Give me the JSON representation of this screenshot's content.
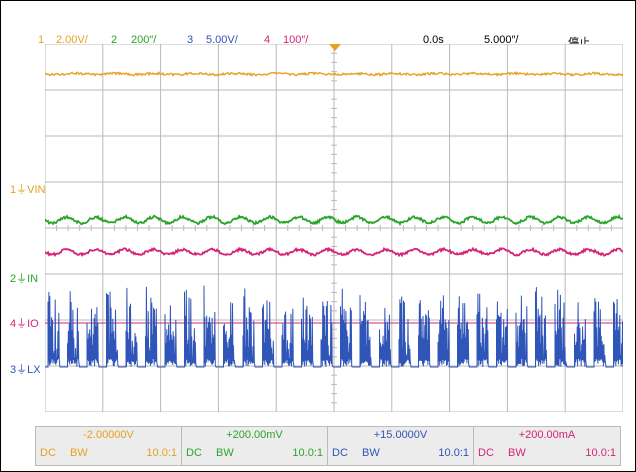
{
  "colors": {
    "ch1": "#e8a020",
    "ch2": "#2aa52a",
    "ch3": "#2f55b8",
    "ch4": "#d4237a",
    "grid": "#b9b9b9",
    "trigger": "#e8a020"
  },
  "header": {
    "channels": [
      {
        "num": "1",
        "scale": "2.00V/"
      },
      {
        "num": "2",
        "scale": "200″/"
      },
      {
        "num": "3",
        "scale": "5.00V/"
      },
      {
        "num": "4",
        "scale": "100″/"
      }
    ],
    "time_offset": "0.0s",
    "timebase": "5.000″/",
    "run_state": "停止"
  },
  "markers": [
    {
      "num": "1",
      "label": "VIN"
    },
    {
      "num": "2",
      "label": "IN"
    },
    {
      "num": "4",
      "label": "IO"
    },
    {
      "num": "3",
      "label": "LX"
    }
  ],
  "status": [
    {
      "offset": "-2.00000V",
      "coupling": "DC",
      "bw": "BW",
      "probe": "10.0:1"
    },
    {
      "offset": "+200.00mV",
      "coupling": "DC",
      "bw": "BW",
      "probe": "10.0:1"
    },
    {
      "offset": "+15.0000V",
      "coupling": "DC",
      "bw": "BW",
      "probe": "10.0:1"
    },
    {
      "offset": "+200.00mA",
      "coupling": "DC",
      "bw": "BW",
      "probe": "10.0:1"
    }
  ]
}
